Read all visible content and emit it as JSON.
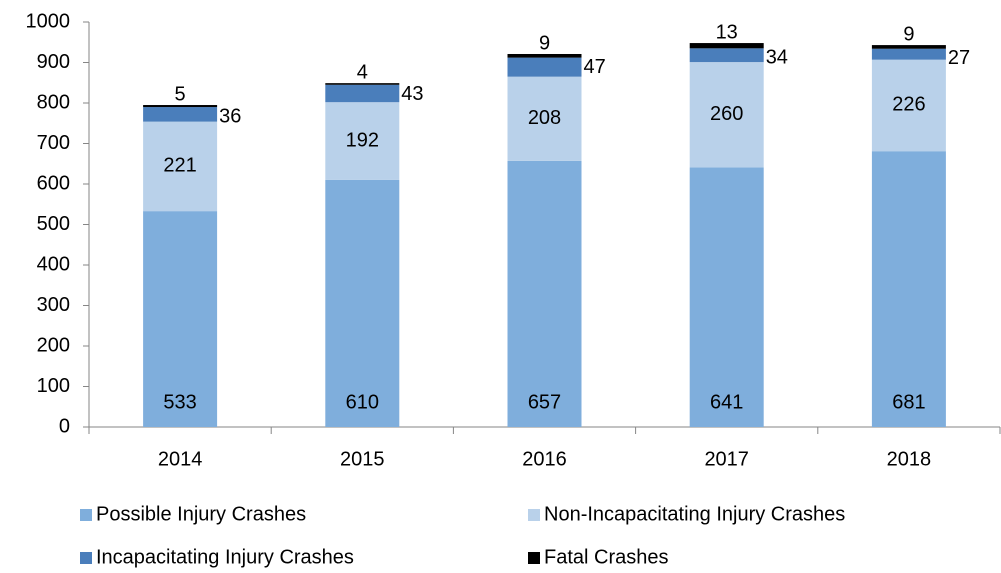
{
  "chart_data": {
    "type": "stacked_bar",
    "categories": [
      "2014",
      "2015",
      "2016",
      "2017",
      "2018"
    ],
    "series": [
      {
        "name": "Possible Injury Crashes",
        "color": "#7faedc",
        "values": [
          533,
          610,
          657,
          641,
          681
        ]
      },
      {
        "name": "Non-Incapacitating Injury Crashes",
        "color": "#b9d1ea",
        "values": [
          221,
          192,
          208,
          260,
          226
        ]
      },
      {
        "name": "Incapacitating Injury Crashes",
        "color": "#4a7ebb",
        "values": [
          36,
          43,
          47,
          34,
          27
        ]
      },
      {
        "name": "Fatal Crashes",
        "color": "#000000",
        "values": [
          5,
          4,
          9,
          13,
          9
        ]
      }
    ],
    "ylim": [
      0,
      1000
    ],
    "yticks": [
      0,
      100,
      200,
      300,
      400,
      500,
      600,
      700,
      800,
      900,
      1000
    ]
  }
}
